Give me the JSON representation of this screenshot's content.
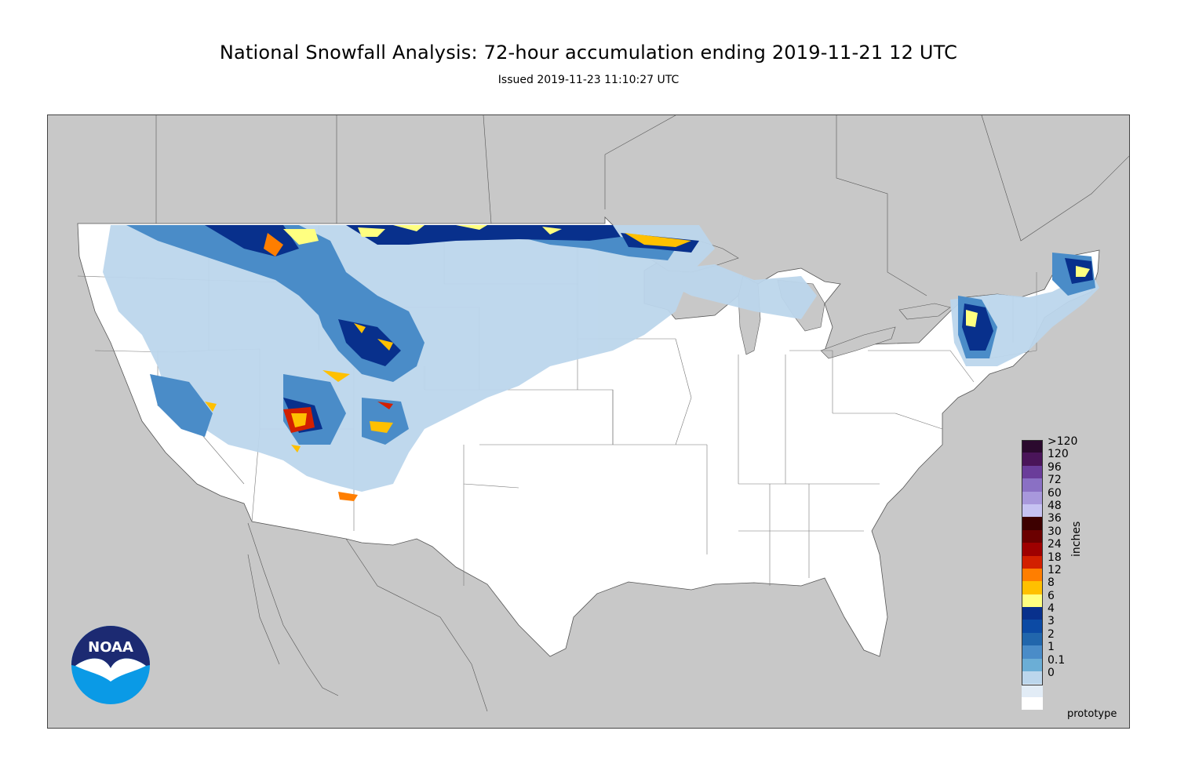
{
  "header": {
    "title": "National Snowfall Analysis: 72-hour accumulation ending 2019-11-21 12 UTC",
    "subtitle": "Issued 2019-11-23 11:10:27 UTC"
  },
  "legend": {
    "units": "inches",
    "bins": [
      {
        "label": ">120",
        "color": "#2b0a2e"
      },
      {
        "label": "120",
        "color": "#4a1559"
      },
      {
        "label": "96",
        "color": "#6a3d9a"
      },
      {
        "label": "72",
        "color": "#8a70c4"
      },
      {
        "label": "60",
        "color": "#a898dc"
      },
      {
        "label": "48",
        "color": "#c6c2f2"
      },
      {
        "label": "36",
        "color": "#3d0000"
      },
      {
        "label": "30",
        "color": "#6b0000"
      },
      {
        "label": "24",
        "color": "#9e0000"
      },
      {
        "label": "18",
        "color": "#d22000"
      },
      {
        "label": "12",
        "color": "#ff7e00"
      },
      {
        "label": "8",
        "color": "#ffc000"
      },
      {
        "label": "6",
        "color": "#ffff80"
      },
      {
        "label": "4",
        "color": "#08308c"
      },
      {
        "label": "3",
        "color": "#0c4aa4"
      },
      {
        "label": "2",
        "color": "#2166ac"
      },
      {
        "label": "1",
        "color": "#4a8cc8"
      },
      {
        "label": "0.1",
        "color": "#6baed6"
      },
      {
        "label": "0",
        "color": "#bcd6ec"
      },
      {
        "label": "",
        "color": "#e2ecf6"
      },
      {
        "label": "",
        "color": "#ffffff"
      }
    ]
  },
  "footer": {
    "note": "prototype"
  },
  "logo": {
    "text": "NOAA",
    "icon": "noaa-logo-icon"
  },
  "colors": {
    "background_land_outside": "#c8c8c8",
    "conus": "#ffffff",
    "snow_light": "#bcd6ec",
    "snow_mid": "#4a8cc8",
    "snow_heavy": "#08308c",
    "snow_peak": "#ffc000",
    "logo_blue": "#0a9ae6",
    "logo_navy": "#1c2a72"
  }
}
